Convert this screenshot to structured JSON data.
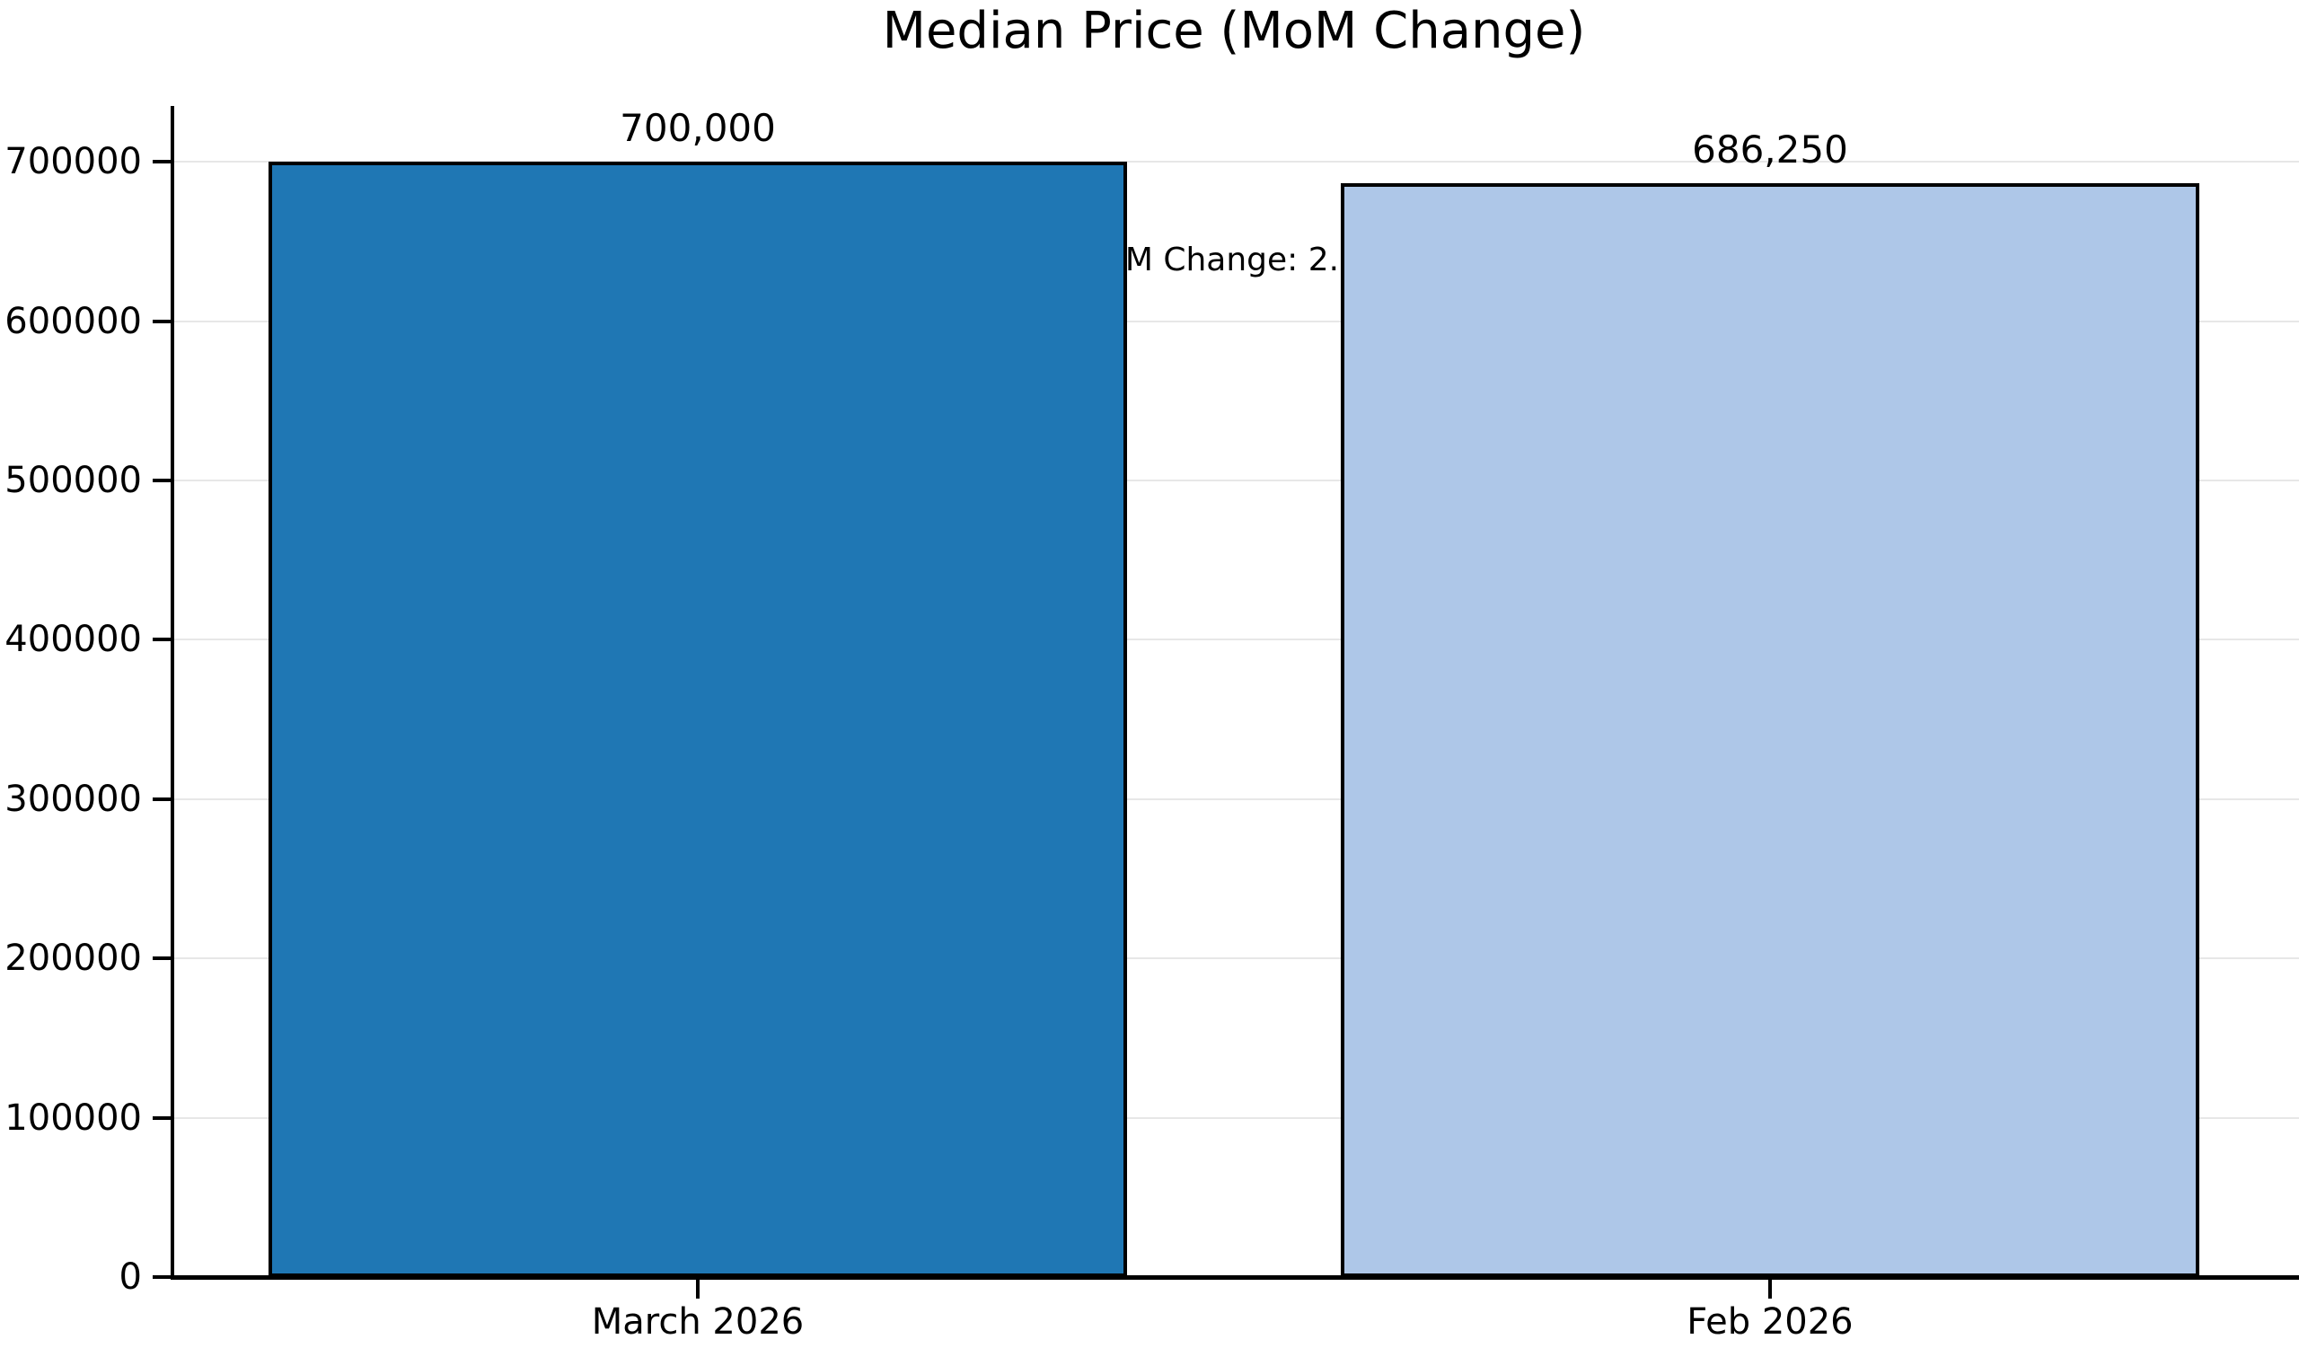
{
  "chart_data": {
    "type": "bar",
    "title": "Median Price (MoM Change)",
    "categories": [
      "March 2026",
      "Feb 2026"
    ],
    "values": [
      700000,
      686250
    ],
    "bar_labels": [
      "700,000",
      "686,250"
    ],
    "bar_colors": [
      "#1f77b4",
      "#aec7e8"
    ],
    "bar_edge_color": "#000000",
    "bar_width": 0.8,
    "xlabel": "",
    "ylabel": "",
    "xlim": [
      -0.49,
      1.49
    ],
    "ylim": [
      0,
      735000
    ],
    "yticks": [
      0,
      100000,
      200000,
      300000,
      400000,
      500000,
      600000,
      700000
    ],
    "ytick_labels": [
      "0",
      "100000",
      "200000",
      "300000",
      "400000",
      "500000",
      "600000",
      "700000"
    ],
    "grid": true,
    "legend": "none",
    "annotation": {
      "text": "MoM Change: 2.0%",
      "x": 0.5,
      "y": 638000
    }
  }
}
